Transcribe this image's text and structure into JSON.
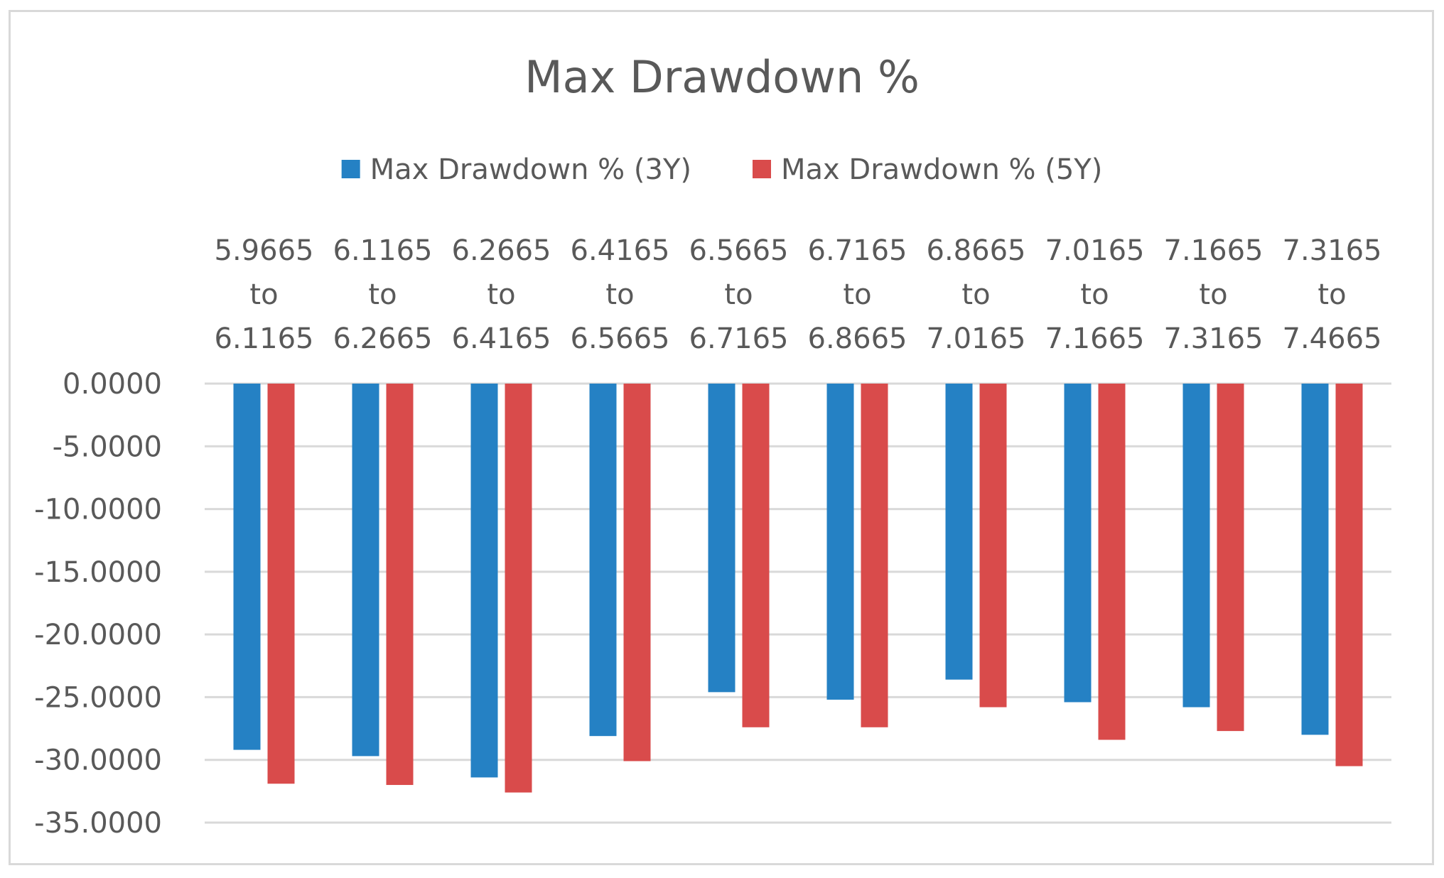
{
  "chart_data": {
    "type": "bar",
    "title": "Max Drawdown %",
    "xlabel": "",
    "ylabel": "",
    "ylim": [
      -35,
      0
    ],
    "yticks": [
      "0.0000",
      "-5.0000",
      "-10.0000",
      "-15.0000",
      "-20.0000",
      "-25.0000",
      "-30.0000",
      "-35.0000"
    ],
    "grid": true,
    "legend_position": "top",
    "category_axis_position": "top",
    "categories": [
      [
        "5.9665",
        "to",
        "6.1165"
      ],
      [
        "6.1165",
        "to",
        "6.2665"
      ],
      [
        "6.2665",
        "to",
        "6.4165"
      ],
      [
        "6.4165",
        "to",
        "6.5665"
      ],
      [
        "6.5665",
        "to",
        "6.7165"
      ],
      [
        "6.7165",
        "to",
        "6.8665"
      ],
      [
        "6.8665",
        "to",
        "7.0165"
      ],
      [
        "7.0165",
        "to",
        "7.1665"
      ],
      [
        "7.1665",
        "to",
        "7.3165"
      ],
      [
        "7.3165",
        "to",
        "7.4665"
      ]
    ],
    "series": [
      {
        "name": "Max Drawdown % (3Y)",
        "color": "#2581c4",
        "values": [
          -29.2,
          -29.7,
          -31.4,
          -28.1,
          -24.6,
          -25.2,
          -23.6,
          -25.4,
          -25.8,
          -28.0
        ]
      },
      {
        "name": "Max Drawdown % (5Y)",
        "color": "#d94b4b",
        "values": [
          -31.9,
          -32.0,
          -32.6,
          -30.1,
          -27.4,
          -27.4,
          -25.8,
          -28.4,
          -27.7,
          -30.5
        ]
      }
    ]
  }
}
